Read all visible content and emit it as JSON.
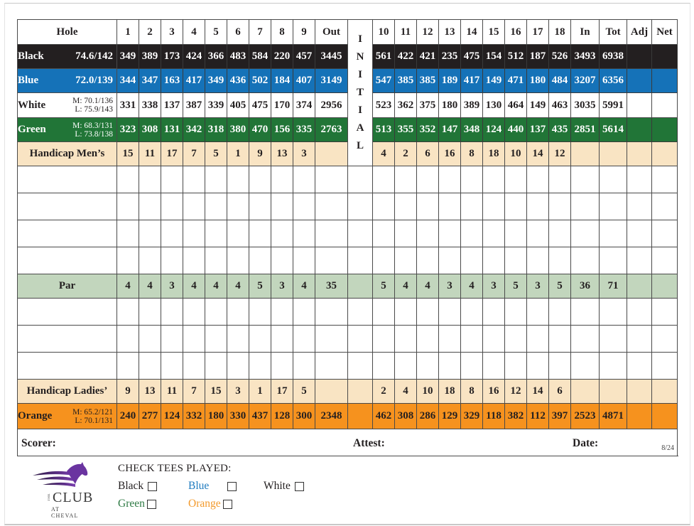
{
  "scorecard": {
    "header": {
      "label": "Hole",
      "front_holes": [
        "1",
        "2",
        "3",
        "4",
        "5",
        "6",
        "7",
        "8",
        "9"
      ],
      "out_label": "Out",
      "initial_letters": [
        "I",
        "N",
        "I",
        "T",
        "I",
        "A",
        "L"
      ],
      "back_holes": [
        "10",
        "11",
        "12",
        "13",
        "14",
        "15",
        "16",
        "17",
        "18"
      ],
      "in_label": "In",
      "tot_label": "Tot",
      "adj_label": "Adj",
      "net_label": "Net"
    },
    "tees": [
      {
        "name": "Black",
        "rating": "74.6/142",
        "color": "#231f20",
        "front": [
          "349",
          "389",
          "173",
          "424",
          "366",
          "483",
          "584",
          "220",
          "457"
        ],
        "out": "3445",
        "back": [
          "561",
          "422",
          "421",
          "235",
          "475",
          "154",
          "512",
          "187",
          "526"
        ],
        "in": "3493",
        "total": "6938"
      },
      {
        "name": "Blue",
        "rating": "72.0/139",
        "color": "#1572b8",
        "front": [
          "344",
          "347",
          "163",
          "417",
          "349",
          "436",
          "502",
          "184",
          "407"
        ],
        "out": "3149",
        "back": [
          "547",
          "385",
          "385",
          "189",
          "417",
          "149",
          "471",
          "180",
          "484"
        ],
        "in": "3207",
        "total": "6356"
      },
      {
        "name": "White",
        "rating_men": "M: 70.1/136",
        "rating_ladies": "L: 75.9/143",
        "color": "#ffffff",
        "front": [
          "331",
          "338",
          "137",
          "387",
          "339",
          "405",
          "475",
          "170",
          "374"
        ],
        "out": "2956",
        "back": [
          "523",
          "362",
          "375",
          "180",
          "389",
          "130",
          "464",
          "149",
          "463"
        ],
        "in": "3035",
        "total": "5991"
      },
      {
        "name": "Green",
        "rating_men": "M: 68.3/131",
        "rating_ladies": "L:  73.8/138",
        "color": "#217537",
        "front": [
          "323",
          "308",
          "131",
          "342",
          "318",
          "380",
          "470",
          "156",
          "335"
        ],
        "out": "2763",
        "back": [
          "513",
          "355",
          "352",
          "147",
          "348",
          "124",
          "440",
          "137",
          "435"
        ],
        "in": "2851",
        "total": "5614"
      }
    ],
    "handicap_mens": {
      "label": "Handicap Men’s",
      "front": [
        "15",
        "11",
        "17",
        "7",
        "5",
        "1",
        "9",
        "13",
        "3"
      ],
      "back": [
        "4",
        "2",
        "6",
        "16",
        "8",
        "18",
        "10",
        "14",
        "12"
      ]
    },
    "par": {
      "label": "Par",
      "front": [
        "4",
        "4",
        "3",
        "4",
        "4",
        "4",
        "5",
        "3",
        "4"
      ],
      "out": "35",
      "back": [
        "5",
        "4",
        "4",
        "3",
        "4",
        "3",
        "5",
        "3",
        "5"
      ],
      "in": "36",
      "total": "71"
    },
    "handicap_ladies": {
      "label": "Handicap Ladies’",
      "front": [
        "9",
        "13",
        "11",
        "7",
        "15",
        "3",
        "1",
        "17",
        "5"
      ],
      "back": [
        "2",
        "4",
        "10",
        "18",
        "8",
        "16",
        "12",
        "14",
        "6"
      ]
    },
    "orange": {
      "name": "Orange",
      "rating_men": "M: 65.2/121",
      "rating_ladies": "L: 70.1/131",
      "color": "#f6921e",
      "front": [
        "240",
        "277",
        "124",
        "332",
        "180",
        "330",
        "437",
        "128",
        "300"
      ],
      "out": "2348",
      "back": [
        "462",
        "308",
        "286",
        "129",
        "329",
        "118",
        "382",
        "112",
        "397"
      ],
      "in": "2523",
      "total": "4871"
    },
    "signature": {
      "scorer_label": "Scorer:",
      "attest_label": "Attest:",
      "date_label": "Date:",
      "version": "8/24"
    }
  },
  "footer": {
    "logo": {
      "the": "THE",
      "club": "CLUB",
      "at_cheval": "AT CHEVAL",
      "brand_color": "#5b2a86"
    },
    "check_tees_title": "CHECK TEES PLAYED:",
    "tee_options": [
      {
        "label": "Black",
        "color": "#231f20"
      },
      {
        "label": "Blue",
        "color": "#1f7bbf"
      },
      {
        "label": "White",
        "color": "#231f20"
      },
      {
        "label": "Green",
        "color": "#2e7a44"
      },
      {
        "label": "Orange",
        "color": "#f39a2c"
      }
    ]
  }
}
